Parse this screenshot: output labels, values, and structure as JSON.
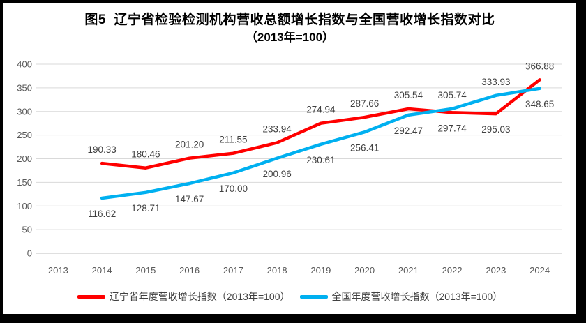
{
  "window": {
    "background": "#ffffff",
    "frame_color": "#000000"
  },
  "title": "图5  辽宁省检验检测机构营收总额增长指数与全国营收增长指数对比",
  "subtitle": "（2013年=100）",
  "colors": {
    "gridline": "#D9D9D9",
    "axis_line": "#BFBFBF",
    "tick_label": "#595959",
    "data_label": "#404040"
  },
  "chart_data": {
    "type": "line",
    "categories": [
      "2013",
      "2014",
      "2015",
      "2016",
      "2017",
      "2018",
      "2019",
      "2020",
      "2021",
      "2022",
      "2023",
      "2024"
    ],
    "series": [
      {
        "name": "辽宁省年度营收增长指数（2013年=100）",
        "color": "#FF0000",
        "values": [
          null,
          190.33,
          180.46,
          201.2,
          211.55,
          233.94,
          274.94,
          287.66,
          305.54,
          297.74,
          295.03,
          366.88
        ],
        "label_side": [
          null,
          "above",
          "above",
          "above",
          "above",
          "above",
          "above",
          "above",
          "above",
          "below",
          "below",
          "above"
        ]
      },
      {
        "name": "全国年度营收增长指数（2013年=100）",
        "color": "#00B0F0",
        "values": [
          null,
          116.62,
          128.71,
          147.67,
          170.0,
          200.96,
          230.61,
          256.41,
          292.47,
          305.74,
          333.93,
          348.65
        ],
        "label_side": [
          null,
          "below",
          "below",
          "below",
          "below",
          "below",
          "below",
          "below",
          "below",
          "above",
          "above",
          "below"
        ]
      }
    ],
    "ylim": [
      0,
      400
    ],
    "ytick_step": 50,
    "grid": true,
    "legend_position": "bottom",
    "data_label_decimals": 2
  }
}
